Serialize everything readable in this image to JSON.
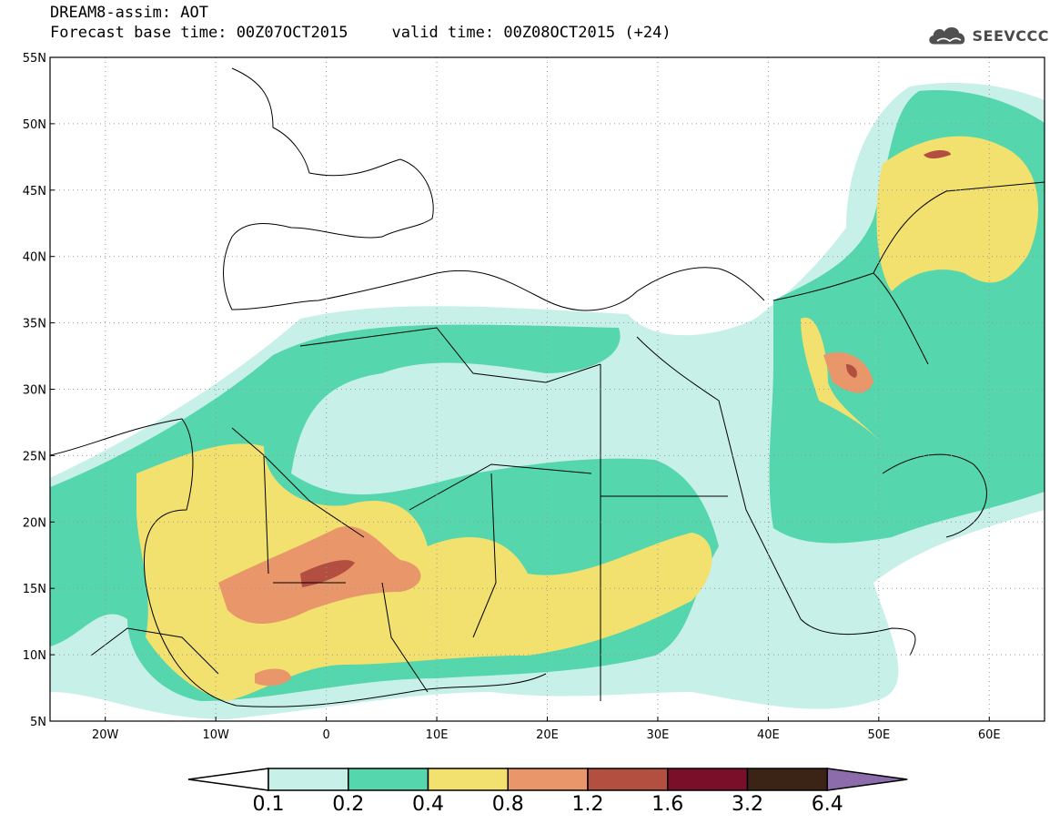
{
  "title": {
    "line1": "DREAM8-assim: AOT",
    "base_time": "Forecast base time: 00Z07OCT2015",
    "valid_time": "valid time: 00Z08OCT2015 (+24)"
  },
  "logo": {
    "text": "SEEVCCC",
    "icon": "cloud-icon"
  },
  "map": {
    "lon_range": [
      -25,
      65
    ],
    "lat_range": [
      5,
      55
    ],
    "lat_ticks": [
      {
        "value": 55,
        "label": "55N"
      },
      {
        "value": 50,
        "label": "50N"
      },
      {
        "value": 45,
        "label": "45N"
      },
      {
        "value": 40,
        "label": "40N"
      },
      {
        "value": 35,
        "label": "35N"
      },
      {
        "value": 30,
        "label": "30N"
      },
      {
        "value": 25,
        "label": "25N"
      },
      {
        "value": 20,
        "label": "20N"
      },
      {
        "value": 15,
        "label": "15N"
      },
      {
        "value": 10,
        "label": "10N"
      },
      {
        "value": 5,
        "label": "5N"
      }
    ],
    "lon_ticks": [
      {
        "value": -20,
        "label": "20W"
      },
      {
        "value": -10,
        "label": "10W"
      },
      {
        "value": 0,
        "label": "0"
      },
      {
        "value": 10,
        "label": "10E"
      },
      {
        "value": 20,
        "label": "20E"
      },
      {
        "value": 30,
        "label": "30E"
      },
      {
        "value": 40,
        "label": "40E"
      },
      {
        "value": 50,
        "label": "50E"
      },
      {
        "value": 60,
        "label": "60E"
      }
    ],
    "grid": true
  },
  "colorbar": {
    "colors": [
      "#ffffff",
      "#c6f0e8",
      "#55d6ac",
      "#f2e16e",
      "#e8966a",
      "#b24f40",
      "#7a0f2a",
      "#3b2416",
      "#8d6cac"
    ],
    "labels": [
      "0.1",
      "0.2",
      "0.4",
      "0.8",
      "1.2",
      "1.6",
      "3.2",
      "6.4"
    ]
  },
  "colors": {
    "very_low": "#c6f0e8",
    "low": "#55d6ac",
    "medium": "#f2e16e",
    "high": "#e8966a",
    "very_high": "#b24f40"
  }
}
